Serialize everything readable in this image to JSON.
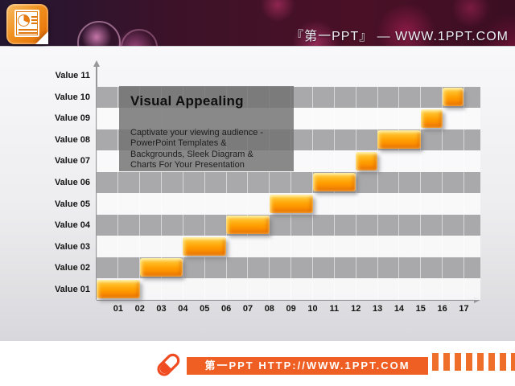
{
  "header": {
    "site_title": "『第一PPT』 —  WWW.1PPT.COM",
    "logo_icon": "powerpoint-icon",
    "background_color": "#3b0e22"
  },
  "slide": {
    "textbox": {
      "title": "Visual Appealing",
      "body": "Captivate your viewing audience -\nPowerPoint Templates &\nBackgrounds, Sleek Diagram &\nCharts For Your Presentation"
    }
  },
  "chart_data": {
    "type": "bar",
    "subtype": "gantt-staircase",
    "title": "",
    "xlabel": "",
    "ylabel": "",
    "xlim": [
      0,
      17
    ],
    "grid": true,
    "legend": false,
    "categories": [
      "Value 01",
      "Value 02",
      "Value 03",
      "Value 04",
      "Value 05",
      "Value 06",
      "Value 07",
      "Value 08",
      "Value 09",
      "Value 10",
      "Value 11"
    ],
    "x_ticks": [
      "01",
      "02",
      "03",
      "04",
      "05",
      "06",
      "07",
      "08",
      "09",
      "10",
      "11",
      "12",
      "13",
      "14",
      "15",
      "16",
      "17"
    ],
    "bars": [
      {
        "label": "Value 01",
        "start": 0,
        "end": 2
      },
      {
        "label": "Value 02",
        "start": 2,
        "end": 4
      },
      {
        "label": "Value 03",
        "start": 4,
        "end": 6
      },
      {
        "label": "Value 04",
        "start": 6,
        "end": 8
      },
      {
        "label": "Value 05",
        "start": 8,
        "end": 10
      },
      {
        "label": "Value 06",
        "start": 10,
        "end": 12
      },
      {
        "label": "Value 07",
        "start": 12,
        "end": 13
      },
      {
        "label": "Value 08",
        "start": 13,
        "end": 15
      },
      {
        "label": "Value 09",
        "start": 15,
        "end": 16
      },
      {
        "label": "Value 10",
        "start": 16,
        "end": 17
      }
    ],
    "bar_color": "#ff9d00",
    "stripe_gray_color": "#a9a9ab",
    "stripe_light_color": "#fafafc"
  },
  "footer": {
    "url_label": "第一PPT HTTP://WWW.1PPT.COM",
    "icon": "pill-icon",
    "accent_color": "#ef5f23"
  }
}
